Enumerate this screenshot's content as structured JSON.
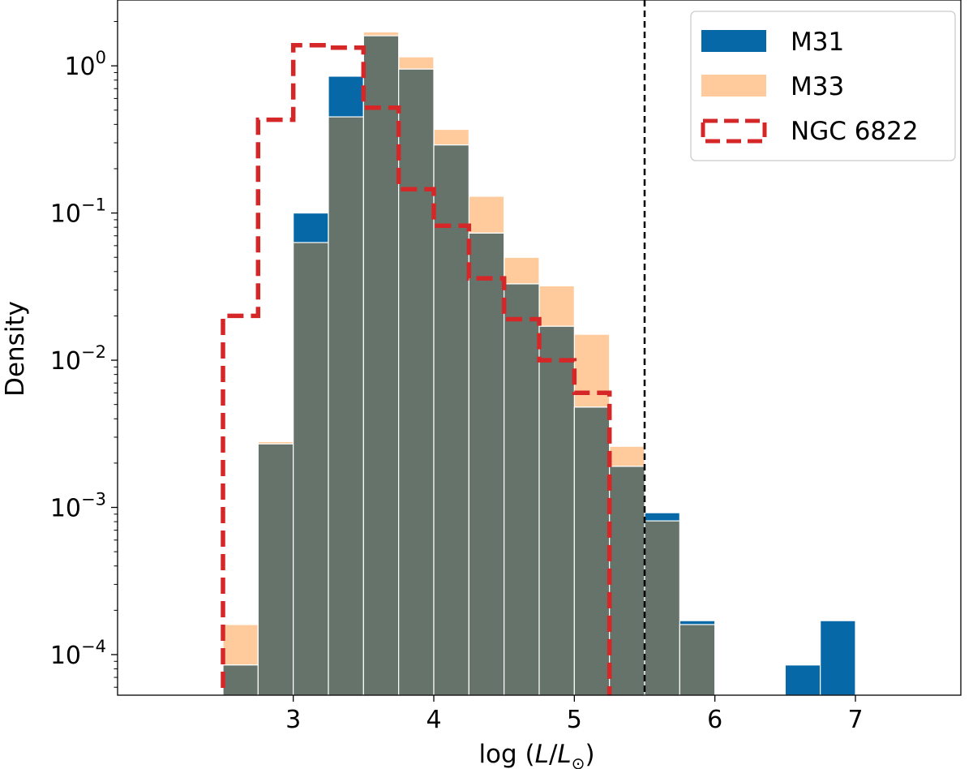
{
  "chart_data": {
    "type": "bar",
    "subtype": "histogram",
    "title": "",
    "xlabel": "log (L/L⊙)",
    "xlabel_parts": {
      "prefix": "log (",
      "var": "L",
      "slash": "/",
      "var2": "L",
      "sub": "⊙",
      "suffix": ")"
    },
    "ylabel": "Density",
    "xlim": [
      1.75,
      7.75
    ],
    "ylim": [
      5.3e-05,
      2.8
    ],
    "yscale": "log",
    "grid": false,
    "legend_position": "top-right",
    "x_ticks": [
      3,
      4,
      5,
      6,
      7
    ],
    "y_ticks": [
      {
        "value": 0.0001,
        "base": "10",
        "exp": "−4"
      },
      {
        "value": 0.001,
        "base": "10",
        "exp": "−3"
      },
      {
        "value": 0.01,
        "base": "10",
        "exp": "−2"
      },
      {
        "value": 0.1,
        "base": "10",
        "exp": "−1"
      },
      {
        "value": 1,
        "base": "10",
        "exp": "0"
      }
    ],
    "reference_line": {
      "x": 5.5,
      "style": "dashed",
      "color": "#000000"
    },
    "bin_edges": [
      2.5,
      2.75,
      3.0,
      3.25,
      3.5,
      3.75,
      4.0,
      4.25,
      4.5,
      4.75,
      5.0,
      5.25,
      5.5,
      5.75,
      6.0,
      6.25,
      6.5,
      6.75,
      7.0,
      7.25,
      7.5
    ],
    "series": [
      {
        "name": "M31",
        "style": "filled",
        "color": "#0668a6",
        "values": [
          8.5e-05,
          0.0027,
          0.1,
          0.85,
          1.6,
          0.95,
          0.29,
          0.073,
          0.033,
          0.017,
          0.0048,
          0.0019,
          0.00092,
          0.00017,
          0,
          0,
          8.5e-05,
          0.00017,
          0,
          0
        ]
      },
      {
        "name": "M33",
        "style": "filled",
        "color": "#ffcb9c",
        "values": [
          0.00016,
          0.0028,
          0.063,
          0.45,
          1.7,
          1.15,
          0.37,
          0.13,
          0.05,
          0.032,
          0.015,
          0.0026,
          0.00081,
          0.00016,
          0,
          0,
          0,
          0,
          0,
          0
        ]
      },
      {
        "name": "NGC 6822",
        "style": "step-dashed",
        "color": "#d62728",
        "bin_edges": [
          2.5,
          2.75,
          3.0,
          3.25,
          3.5,
          3.75,
          4.0,
          4.25,
          4.5,
          4.75,
          5.0,
          5.25
        ],
        "values": [
          0.02,
          0.43,
          1.38,
          1.33,
          0.52,
          0.145,
          0.082,
          0.036,
          0.019,
          0.01,
          0.006
        ]
      }
    ],
    "overlap_color": "#65736a"
  }
}
